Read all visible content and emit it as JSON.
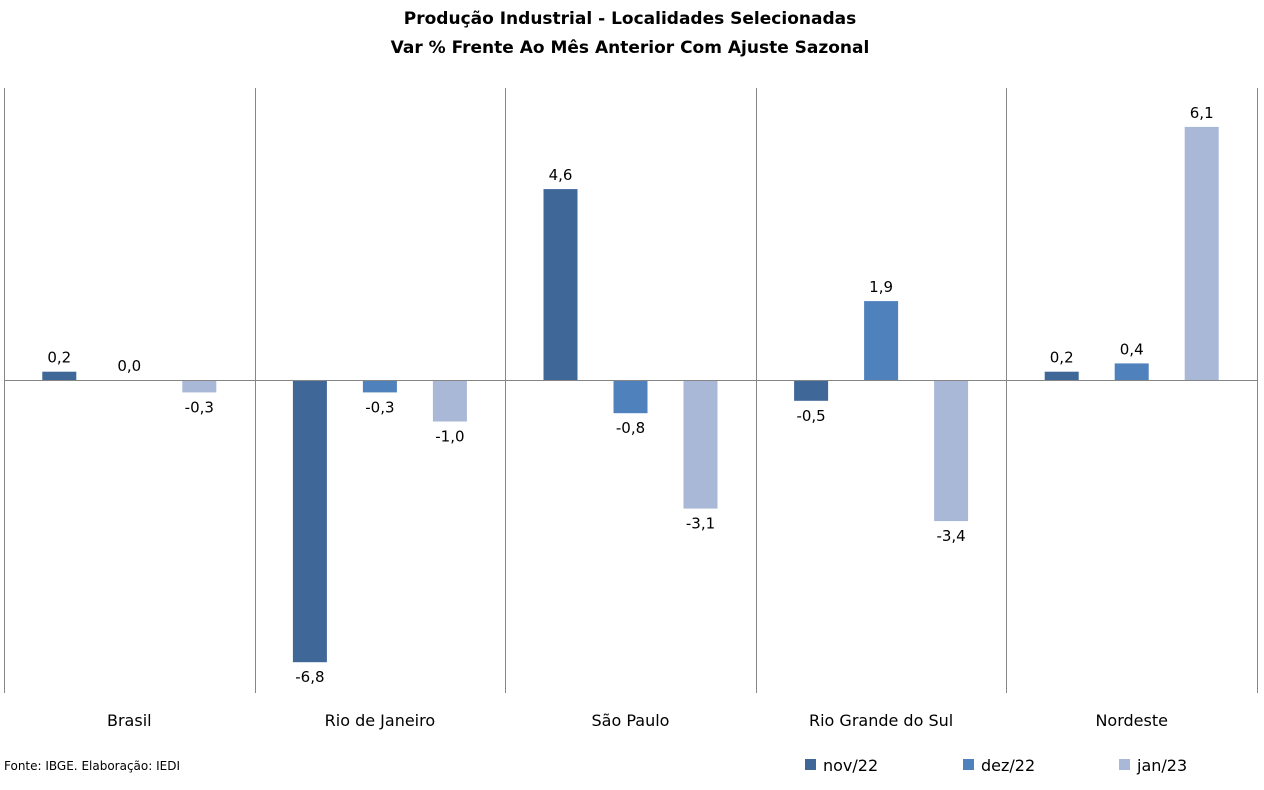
{
  "chart_data": {
    "type": "bar",
    "title": "Produção Industrial - Localidades Selecionadas",
    "subtitle": "Var % Frente Ao Mês Anterior Com Ajuste Sazonal",
    "categories": [
      "Brasil",
      "Rio de Janeiro",
      "São Paulo",
      "Rio Grande do Sul",
      "Nordeste"
    ],
    "series": [
      {
        "name": "nov/22",
        "color": "#3F6797",
        "values": [
          0.2,
          -6.8,
          4.6,
          -0.5,
          0.2
        ],
        "labels": [
          "0,2",
          "-6,8",
          "4,6",
          "-0,5",
          "0,2"
        ]
      },
      {
        "name": "dez/22",
        "color": "#4F81BD",
        "values": [
          0.0,
          -0.3,
          -0.8,
          1.9,
          0.4
        ],
        "labels": [
          "0,0",
          "-0,3",
          "-0,8",
          "1,9",
          "0,4"
        ]
      },
      {
        "name": "jan/23",
        "color": "#A9B8D6",
        "values": [
          -0.3,
          -1.0,
          -3.1,
          -3.4,
          6.1
        ],
        "labels": [
          "-0,3",
          "-1,0",
          "-3,1",
          "-3,4",
          "6,1"
        ]
      }
    ],
    "ylim": [
      -7.5,
      7.1
    ],
    "xlabel": "",
    "ylabel": "",
    "grid": false,
    "legend_position": "bottom-right"
  },
  "footer": {
    "source": "Fonte: IBGE. Elaboração: IEDI"
  }
}
